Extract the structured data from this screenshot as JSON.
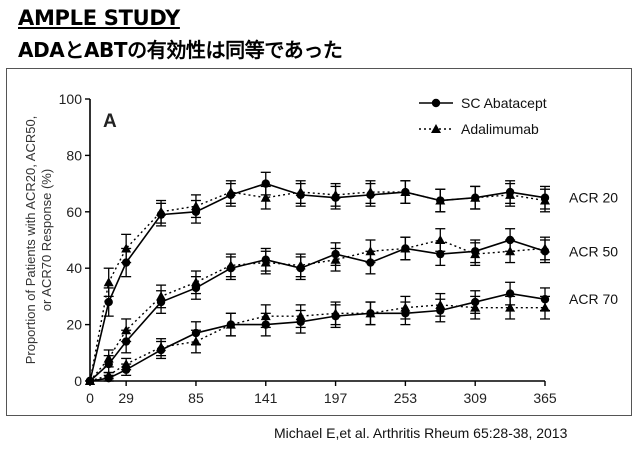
{
  "slide": {
    "title": "AMPLE STUDY",
    "subtitle": "ADAとABTの有効性は同等であった",
    "citation": "Michael E,et al. Arthritis Rheum 65:28-38, 2013"
  },
  "chart_data": {
    "type": "line",
    "panel_label": "A",
    "ylabel": "Proportion of Patients with ACR20, ACR50, or ACR70 Response (%)",
    "xlabel": "",
    "ylim": [
      0,
      100
    ],
    "xlim": [
      0,
      365
    ],
    "yticks": [
      0,
      20,
      40,
      60,
      80,
      100
    ],
    "xticks": [
      0,
      29,
      85,
      141,
      197,
      253,
      309,
      365
    ],
    "grid": false,
    "legend_position": "top-right",
    "legend": [
      {
        "label": "SC Abatacept",
        "marker": "circle",
        "line": "solid"
      },
      {
        "label": "Adalimumab",
        "marker": "triangle",
        "line": "dotted"
      }
    ],
    "x": [
      0,
      15,
      29,
      57,
      85,
      113,
      141,
      169,
      197,
      225,
      253,
      281,
      309,
      337,
      365
    ],
    "groups": [
      {
        "label": "ACR 20",
        "series": [
          {
            "name": "SC Abatacept",
            "values": [
              0,
              28,
              42,
              59,
              60,
              66,
              70,
              66,
              65,
              66,
              67,
              64,
              65,
              67,
              65
            ],
            "err": [
              0,
              5,
              5,
              4,
              4,
              4,
              4,
              4,
              4,
              4,
              4,
              4,
              4,
              4,
              4
            ]
          },
          {
            "name": "Adalimumab",
            "values": [
              0,
              35,
              47,
              60,
              62,
              67,
              65,
              67,
              66,
              67,
              67,
              64,
              65,
              66,
              64
            ],
            "err": [
              0,
              5,
              5,
              4,
              4,
              4,
              4,
              4,
              4,
              4,
              4,
              4,
              4,
              4,
              4
            ]
          }
        ]
      },
      {
        "label": "ACR 50",
        "series": [
          {
            "name": "SC Abatacept",
            "values": [
              0,
              6,
              14,
              28,
              33,
              40,
              43,
              40,
              45,
              42,
              47,
              45,
              46,
              50,
              46
            ],
            "err": [
              0,
              3,
              4,
              4,
              4,
              4,
              4,
              4,
              4,
              4,
              4,
              4,
              4,
              4,
              4
            ]
          },
          {
            "name": "Adalimumab",
            "values": [
              0,
              8,
              18,
              30,
              35,
              41,
              42,
              41,
              43,
              46,
              47,
              50,
              45,
              46,
              47
            ],
            "err": [
              0,
              3,
              4,
              4,
              4,
              4,
              4,
              4,
              4,
              4,
              4,
              4,
              4,
              4,
              4
            ]
          }
        ]
      },
      {
        "label": "ACR 70",
        "series": [
          {
            "name": "SC Abatacept",
            "values": [
              0,
              1,
              4,
              11,
              17,
              20,
              20,
              21,
              23,
              24,
              24,
              25,
              28,
              31,
              29
            ],
            "err": [
              0,
              1,
              2,
              3,
              4,
              4,
              4,
              4,
              4,
              4,
              4,
              4,
              4,
              4,
              4
            ]
          },
          {
            "name": "Adalimumab",
            "values": [
              0,
              2,
              6,
              12,
              14,
              20,
              23,
              23,
              24,
              24,
              26,
              27,
              26,
              26,
              26
            ],
            "err": [
              0,
              1,
              2,
              3,
              4,
              4,
              4,
              4,
              4,
              4,
              4,
              4,
              4,
              4,
              4
            ]
          }
        ]
      }
    ]
  }
}
